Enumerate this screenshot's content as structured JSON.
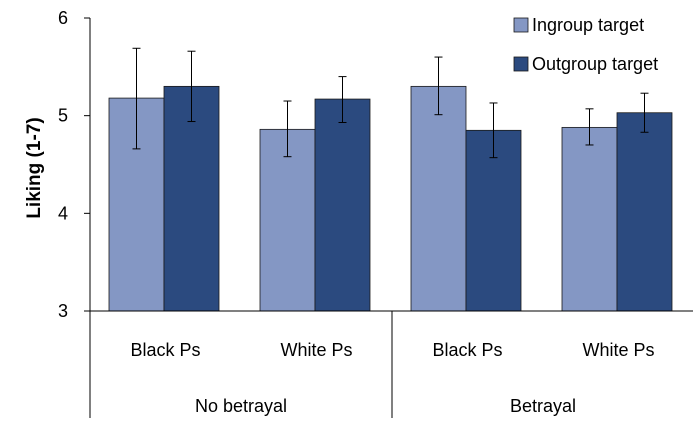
{
  "chart_data": {
    "type": "bar",
    "ylabel": "Liking (1-7)",
    "ylim": [
      3,
      6
    ],
    "yticks": [
      "3",
      "4",
      "5",
      "6"
    ],
    "groups": [
      {
        "label": "No betrayal",
        "categories": [
          "Black Ps",
          "White Ps"
        ]
      },
      {
        "label": "Betrayal",
        "categories": [
          "Black Ps",
          "White Ps"
        ]
      }
    ],
    "categories": [
      "Black Ps",
      "White Ps",
      "Black Ps",
      "White Ps"
    ],
    "series": [
      {
        "name": "Ingroup target",
        "color": "#8497c4",
        "values": [
          5.18,
          4.86,
          5.3,
          4.88
        ],
        "error_low": [
          4.66,
          4.58,
          5.01,
          4.7
        ],
        "error_high": [
          5.69,
          5.15,
          5.6,
          5.07
        ]
      },
      {
        "name": "Outgroup target",
        "color": "#2b4a7f",
        "values": [
          5.3,
          5.17,
          4.85,
          5.03
        ],
        "error_low": [
          4.94,
          4.93,
          4.57,
          4.83
        ],
        "error_high": [
          5.66,
          5.4,
          5.13,
          5.23
        ]
      }
    ],
    "legend_position": "top-right",
    "grid": false
  }
}
